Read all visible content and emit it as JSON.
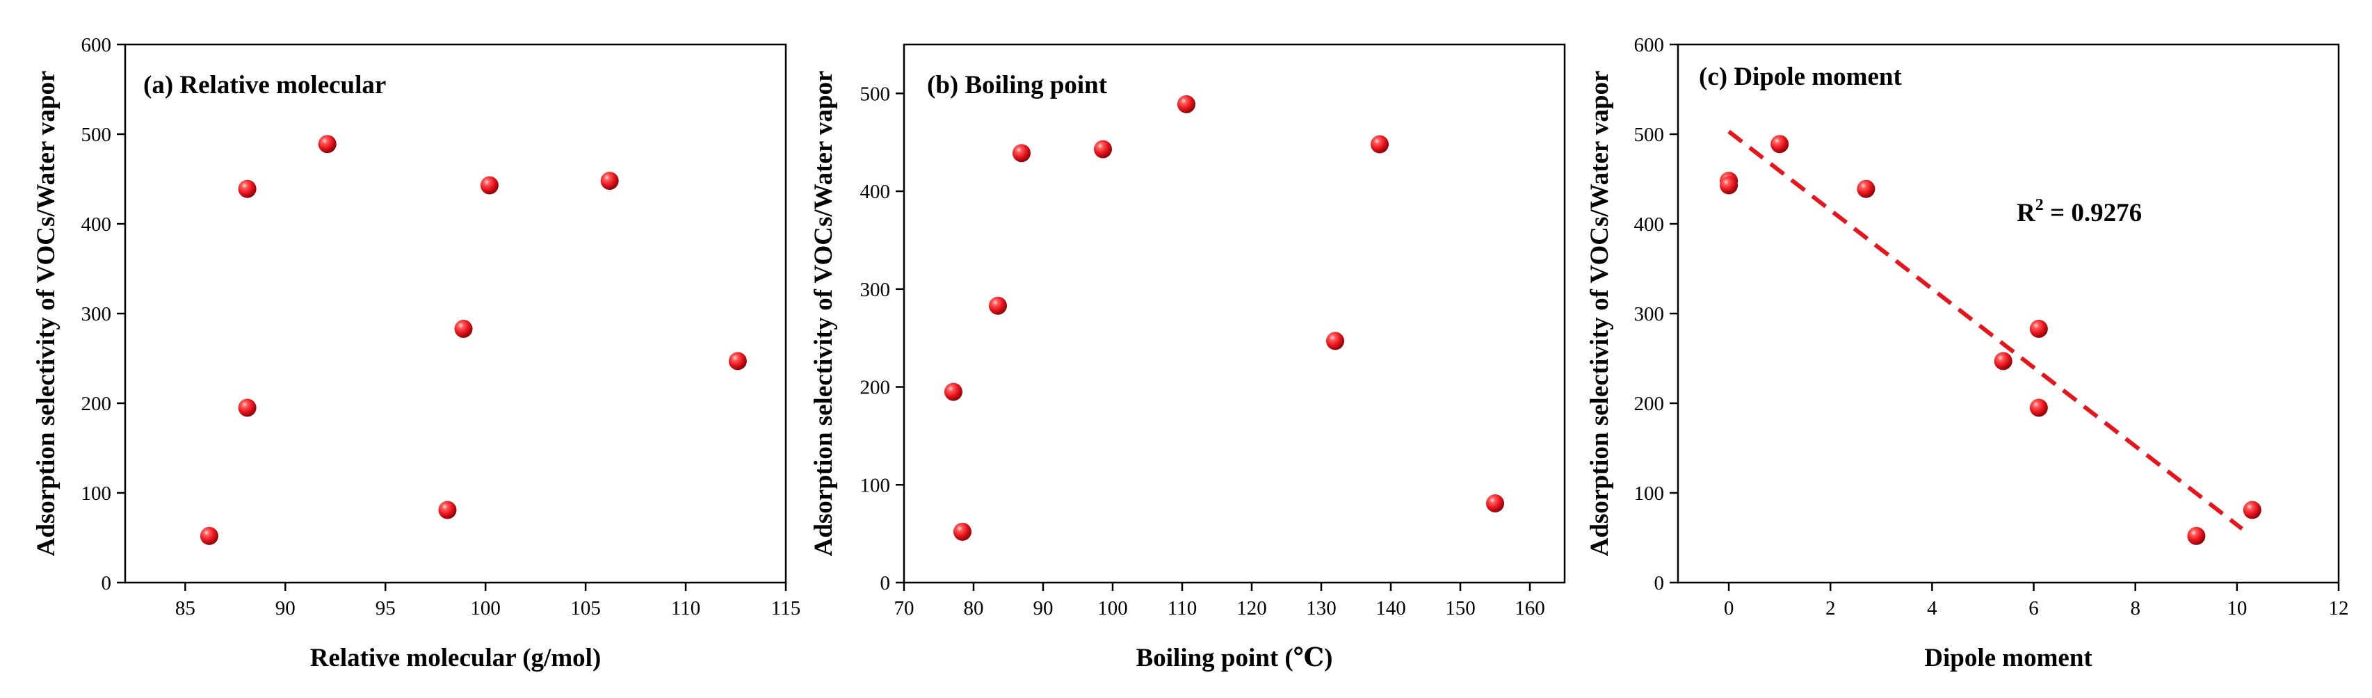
{
  "chart_data": [
    {
      "type": "scatter",
      "title": "(a) Relative molecular",
      "xlabel": "Relative molecular (g/mol)",
      "ylabel": "Adsorption selectivity of VOCs/Water vapor",
      "xlim": [
        82,
        115
      ],
      "ylim": [
        0,
        600
      ],
      "xticks": [
        85,
        90,
        95,
        100,
        105,
        110,
        115
      ],
      "yticks": [
        0,
        100,
        200,
        300,
        400,
        500,
        600
      ],
      "grid": false,
      "points": [
        {
          "x": 86.2,
          "y": 52
        },
        {
          "x": 88.1,
          "y": 195
        },
        {
          "x": 88.1,
          "y": 439
        },
        {
          "x": 92.1,
          "y": 489
        },
        {
          "x": 98.1,
          "y": 81
        },
        {
          "x": 98.9,
          "y": 283
        },
        {
          "x": 100.2,
          "y": 443
        },
        {
          "x": 106.2,
          "y": 448
        },
        {
          "x": 112.6,
          "y": 247
        }
      ],
      "marker_color": "#e8141c"
    },
    {
      "type": "scatter",
      "title": "(b) Boiling point",
      "xlabel": "Boiling point (℃)",
      "ylabel": "Adsorption selectivity of VOCs/Water vapor",
      "xlim": [
        70,
        165
      ],
      "ylim": [
        0,
        550
      ],
      "xticks": [
        70,
        80,
        90,
        100,
        110,
        120,
        130,
        140,
        150,
        160
      ],
      "yticks": [
        0,
        100,
        200,
        300,
        400,
        500
      ],
      "grid": false,
      "points": [
        {
          "x": 77.1,
          "y": 195
        },
        {
          "x": 78.4,
          "y": 52
        },
        {
          "x": 83.5,
          "y": 283
        },
        {
          "x": 86.9,
          "y": 439
        },
        {
          "x": 98.6,
          "y": 443
        },
        {
          "x": 110.6,
          "y": 489
        },
        {
          "x": 132,
          "y": 247
        },
        {
          "x": 138.4,
          "y": 448
        },
        {
          "x": 155,
          "y": 81
        }
      ],
      "marker_color": "#e8141c"
    },
    {
      "type": "scatter",
      "title": "(c) Dipole moment",
      "xlabel": "Dipole moment",
      "ylabel": "Adsorption selectivity of VOCs/Water vapor",
      "xlim": [
        -1,
        12
      ],
      "ylim": [
        0,
        600
      ],
      "xticks": [
        0,
        2,
        4,
        6,
        8,
        10,
        12
      ],
      "yticks": [
        0,
        100,
        200,
        300,
        400,
        500,
        600
      ],
      "grid": false,
      "points": [
        {
          "x": 0,
          "y": 448
        },
        {
          "x": 0,
          "y": 443
        },
        {
          "x": 1,
          "y": 489
        },
        {
          "x": 2.7,
          "y": 439
        },
        {
          "x": 5.4,
          "y": 247
        },
        {
          "x": 6.1,
          "y": 283
        },
        {
          "x": 6.1,
          "y": 195
        },
        {
          "x": 9.2,
          "y": 52
        },
        {
          "x": 10.3,
          "y": 81
        }
      ],
      "fit_line": {
        "x": [
          0,
          10.1
        ],
        "y": [
          503,
          60
        ],
        "style": "dashed",
        "color": "#e8141c"
      },
      "annotation_main": "R",
      "annotation_sup": "2",
      "annotation_rest": " = 0.9276",
      "marker_color": "#e8141c"
    }
  ]
}
